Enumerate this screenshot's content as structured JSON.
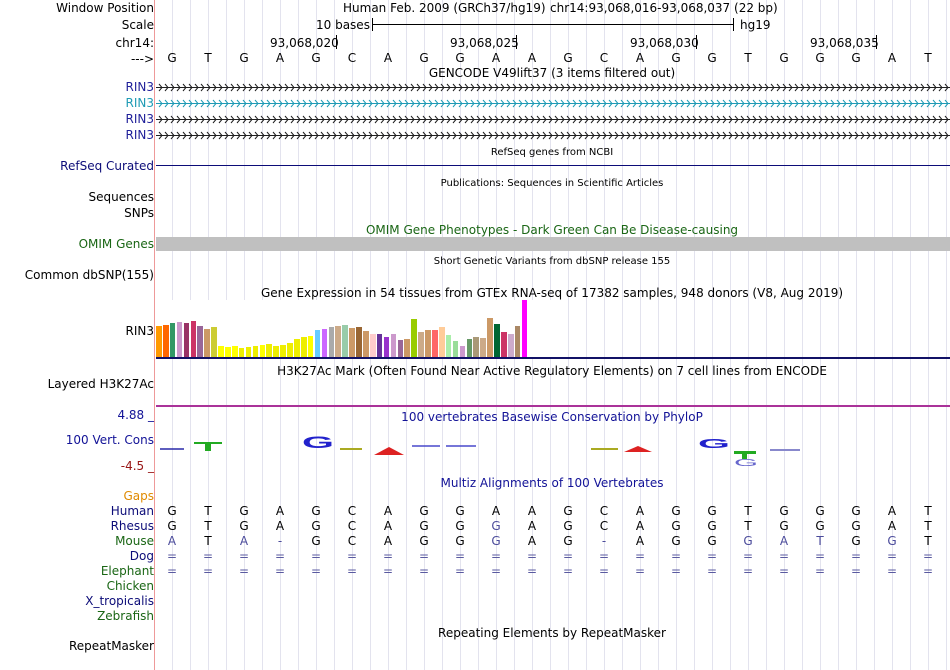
{
  "labels": {
    "window_position": "Window Position",
    "scale": "Scale",
    "chr": "chr14:",
    "arrow": "--->",
    "rin3_1": "RIN3",
    "rin3_2": "RIN3",
    "rin3_3": "RIN3",
    "rin3_4": "RIN3",
    "refseq": "RefSeq Curated",
    "sequences": "Sequences",
    "snps": "SNPs",
    "omim": "OMIM Genes",
    "dbsnp": "Common dbSNP(155)",
    "gtex_rin3": "RIN3",
    "h3k27ac": "Layered H3K27Ac",
    "cons_max": "4.88 _",
    "cons_label": "100 Vert. Cons",
    "cons_min": "-4.5 _",
    "gaps": "Gaps",
    "human": "Human",
    "rhesus": "Rhesus",
    "mouse": "Mouse",
    "dog": "Dog",
    "elephant": "Elephant",
    "chicken": "Chicken",
    "x_tropicalis": "X_tropicalis",
    "zebrafish": "Zebrafish",
    "repeatmasker": "RepeatMasker"
  },
  "header": {
    "assembly": "Human Feb. 2009 (GRCh37/hg19)",
    "position": "chr14:93,068,016-93,068,037 (22 bp)",
    "scale_text": "10 bases",
    "db": "hg19",
    "coords": [
      "93,068,020",
      "93,068,025",
      "93,068,030",
      "93,068,035"
    ]
  },
  "bases": [
    "G",
    "T",
    "G",
    "A",
    "G",
    "C",
    "A",
    "G",
    "G",
    "A",
    "A",
    "G",
    "C",
    "A",
    "G",
    "G",
    "T",
    "G",
    "G",
    "G",
    "A",
    "T"
  ],
  "titles": {
    "gencode": "GENCODE V49lift37 (3 items filtered out)",
    "refseq": "RefSeq genes from NCBI",
    "publications": "Publications: Sequences in Scientific Articles",
    "omim": "OMIM Gene Phenotypes - Dark Green Can Be Disease-causing",
    "dbsnp": "Short Genetic Variants from dbSNP release 155",
    "gtex": "Gene Expression in 54 tissues from GTEx RNA-seq of 17382 samples, 948 donors (V8, Aug 2019)",
    "h3k27ac": "H3K27Ac Mark (Often Found Near Active Regulatory Elements) on 7 cell lines from ENCODE",
    "phylop": "100 vertebrates Basewise Conservation by PhyloP",
    "multiz": "Multiz Alignments of 100 Vertebrates",
    "repeatmasker": "Repeating Elements by RepeatMasker"
  },
  "alignment": {
    "human": [
      "G",
      "T",
      "G",
      "A",
      "G",
      "C",
      "A",
      "G",
      "G",
      "A",
      "A",
      "G",
      "C",
      "A",
      "G",
      "G",
      "T",
      "G",
      "G",
      "G",
      "A",
      "T"
    ],
    "rhesus": [
      "G",
      "T",
      "G",
      "A",
      "G",
      "C",
      "A",
      "G",
      "G",
      "G",
      "A",
      "G",
      "C",
      "A",
      "G",
      "G",
      "T",
      "G",
      "G",
      "G",
      "A",
      "T"
    ],
    "mouse": [
      "A",
      "T",
      "A",
      "-",
      "G",
      "C",
      "A",
      "G",
      "G",
      "G",
      "A",
      "G",
      "-",
      "A",
      "G",
      "G",
      "G",
      "A",
      "T",
      "G",
      "G",
      "T"
    ],
    "dog": [
      "=",
      "=",
      "=",
      "=",
      "=",
      "=",
      "=",
      "=",
      "=",
      "=",
      "=",
      "=",
      "=",
      "=",
      "=",
      "=",
      "=",
      "=",
      "=",
      "=",
      "=",
      "="
    ],
    "elephant": [
      "=",
      "=",
      "=",
      "=",
      "=",
      "=",
      "=",
      "=",
      "=",
      "=",
      "=",
      "=",
      "=",
      "=",
      "=",
      "=",
      "=",
      "=",
      "=",
      "=",
      "=",
      "="
    ]
  },
  "gtex_values": [
    31,
    32,
    34,
    35,
    34,
    36,
    31,
    28,
    30,
    11,
    10,
    11,
    9,
    10,
    11,
    12,
    13,
    11,
    12,
    14,
    18,
    20,
    21,
    27,
    28,
    30,
    31,
    32,
    29,
    30,
    26,
    23,
    23,
    20,
    23,
    17,
    18,
    38,
    25,
    27,
    27,
    30,
    22,
    16,
    11,
    18,
    20,
    19,
    39,
    33,
    25,
    23,
    31,
    57
  ],
  "colors": {
    "gtex": [
      "#ff9900",
      "#ff6600",
      "#339966",
      "#cc99cc",
      "#993366",
      "#cc3366",
      "#996699",
      "#cc9966",
      "#cccc33",
      "#ffff00",
      "#ffff00",
      "#ffff00",
      "#eeee00",
      "#eeee00",
      "#eeee00",
      "#ffff00",
      "#eeee00",
      "#eeee00",
      "#eeee00",
      "#eeee00",
      "#eeee00",
      "#eeee00",
      "#ffff00",
      "#66ccff",
      "#cc66ff",
      "#aaaaaa",
      "#ccaa88",
      "#99ccaa",
      "#cc9966",
      "#996633",
      "#cc9966",
      "#ffcccc",
      "#663399",
      "#9933cc",
      "#cc99cc",
      "#996699",
      "#cc9966",
      "#99cc00",
      "#ccaa88",
      "#cc9966",
      "#ff6666",
      "#ffcc99",
      "#aaeeaa",
      "#99dd99",
      "#cc99cc",
      "#669966",
      "#aa9977",
      "#ccaa88",
      "#cc9966",
      "#006633",
      "#cc3366",
      "#ccaacc",
      "#aa8866",
      "#ff00ff"
    ],
    "gencode": "#1f1f1f",
    "gencode_alt": "#1f9bb5",
    "refseq": "#0c0c78",
    "omim_bar": "#c0c0c0",
    "omim_title": "#1a6615",
    "gtex_title": "#000000",
    "h3k27ac_line": "#aa3399",
    "cons_axis_max": "#121297",
    "cons_axis_min": "#981515",
    "gaps_label": "#e08a00",
    "mouse_letters": "#4b4b9b",
    "dog_elephant_letters": "#5a5aa0"
  }
}
